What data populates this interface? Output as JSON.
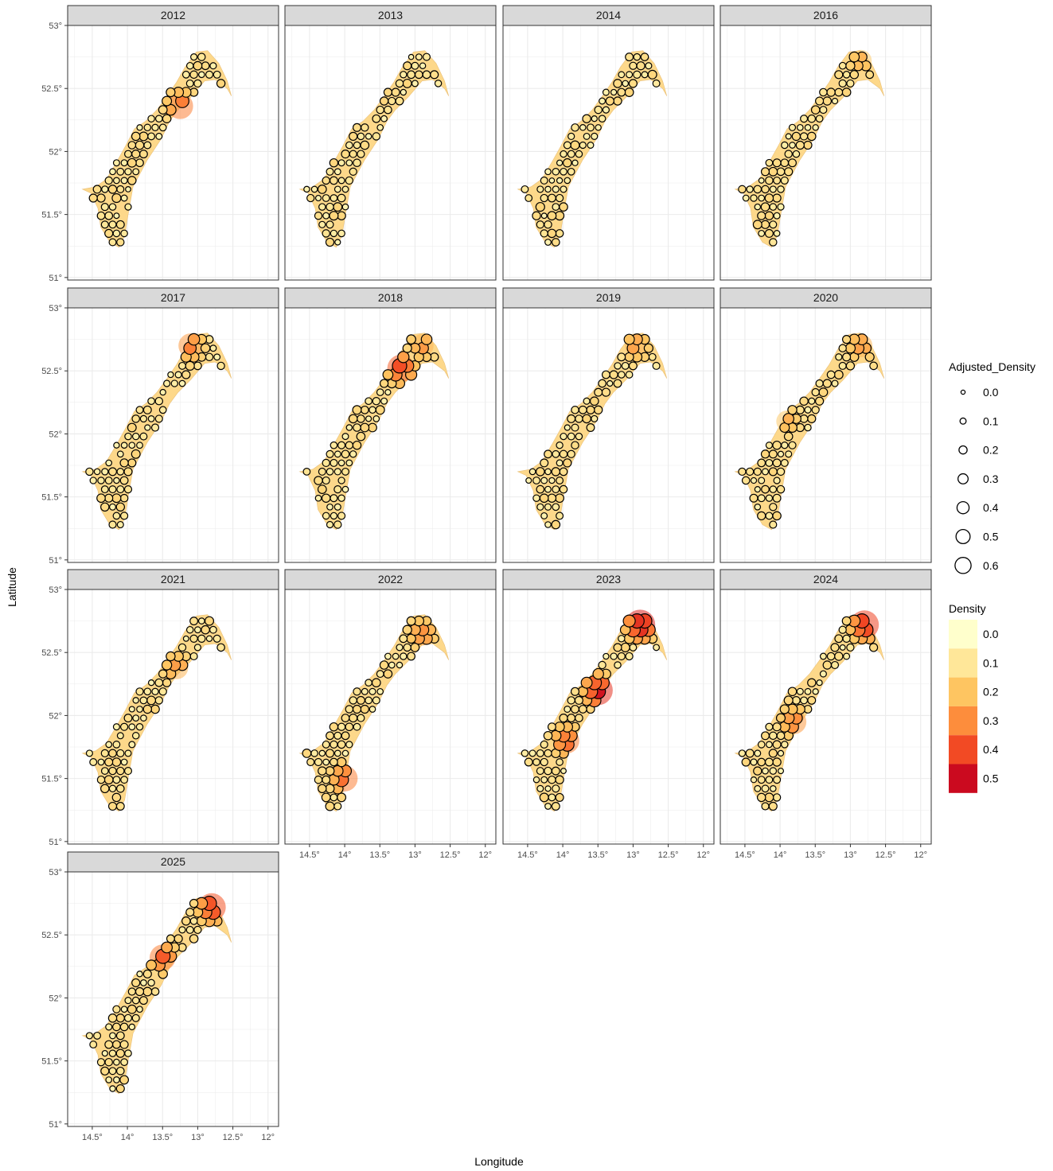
{
  "figure": {
    "x_label": "Longitude",
    "y_label": "Latitude"
  },
  "legends": {
    "size_title": "Adjusted_Density",
    "size_levels": [
      "0.0",
      "0.1",
      "0.2",
      "0.3",
      "0.4",
      "0.5",
      "0.6"
    ],
    "fill_title": "Density",
    "fill_levels": [
      "0.0",
      "0.1",
      "0.2",
      "0.3",
      "0.4",
      "0.5"
    ],
    "fill_colors": [
      "#FFFFCC",
      "#FFE799",
      "#FEC561",
      "#FD8D3C",
      "#F24A24",
      "#CB0A1F"
    ]
  },
  "chart_data": {
    "type": "scatter",
    "subtype": "faceted density map with size-scaled points",
    "facets": [
      "2012",
      "2013",
      "2014",
      "2016",
      "2017",
      "2018",
      "2019",
      "2020",
      "2021",
      "2022",
      "2023",
      "2024",
      "2025"
    ],
    "x_ticks": [
      "14.5°",
      "14°",
      "13.5°",
      "13°",
      "12.5°",
      "12°"
    ],
    "y_ticks": [
      "51°",
      "51.5°",
      "52°",
      "52.5°",
      "53°"
    ],
    "xlim": [
      14.85,
      11.85
    ],
    "ylim": [
      50.98,
      53.0
    ],
    "x_reversed": true,
    "grid": true,
    "legend_position": "right",
    "facet_hotspots": [
      {
        "year": "2012",
        "points": [
          [
            13.25,
            52.36,
            0.35
          ]
        ]
      },
      {
        "year": "2013",
        "points": []
      },
      {
        "year": "2014",
        "points": []
      },
      {
        "year": "2016",
        "points": [
          [
            12.85,
            52.72,
            0.2
          ]
        ]
      },
      {
        "year": "2017",
        "points": [
          [
            13.1,
            52.7,
            0.3
          ]
        ]
      },
      {
        "year": "2018",
        "points": [
          [
            13.2,
            52.52,
            0.4
          ],
          [
            12.9,
            52.7,
            0.25
          ]
        ]
      },
      {
        "year": "2019",
        "points": [
          [
            12.95,
            52.7,
            0.25
          ]
        ]
      },
      {
        "year": "2020",
        "points": [
          [
            12.85,
            52.7,
            0.25
          ],
          [
            13.9,
            52.1,
            0.2
          ]
        ]
      },
      {
        "year": "2021",
        "points": [
          [
            13.3,
            52.38,
            0.25
          ]
        ]
      },
      {
        "year": "2022",
        "points": [
          [
            14.0,
            51.5,
            0.35
          ],
          [
            12.9,
            52.65,
            0.28
          ]
        ]
      },
      {
        "year": "2023",
        "points": [
          [
            12.9,
            52.72,
            0.5
          ],
          [
            13.5,
            52.2,
            0.48
          ],
          [
            13.95,
            51.8,
            0.35
          ]
        ]
      },
      {
        "year": "2024",
        "points": [
          [
            12.8,
            52.72,
            0.45
          ],
          [
            13.8,
            51.95,
            0.3
          ]
        ]
      },
      {
        "year": "2025",
        "points": [
          [
            12.8,
            52.72,
            0.42
          ],
          [
            13.5,
            52.32,
            0.35
          ]
        ]
      }
    ]
  }
}
